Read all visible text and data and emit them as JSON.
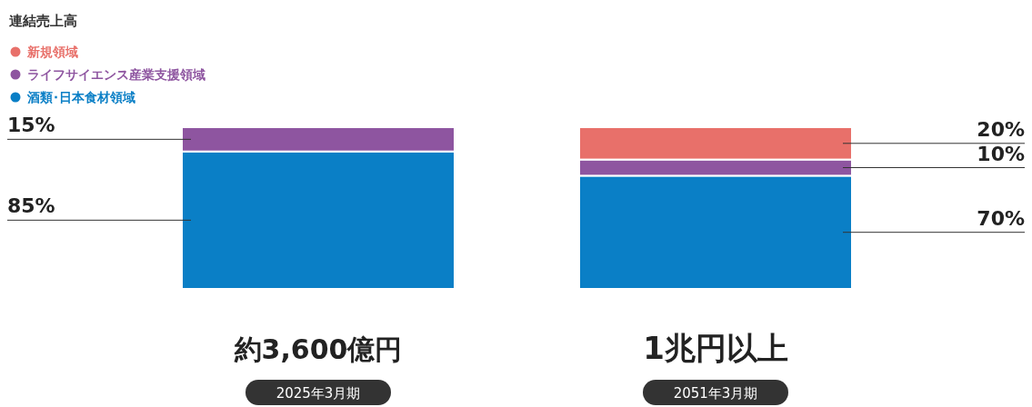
{
  "chart_data": {
    "type": "bar",
    "stacked": true,
    "title": "連結売上高",
    "legend": "top left",
    "categories": [
      "2025年3月期",
      "2051年3月期"
    ],
    "series": [
      {
        "name": "酒類･日本食材領域",
        "color": "#0a7fc6",
        "values": [
          85,
          70
        ],
        "value_labels": [
          "85%",
          "70%"
        ]
      },
      {
        "name": "ライフサイエンス産業支援領域",
        "color": "#8e55a0",
        "values": [
          15,
          10
        ],
        "value_labels": [
          "15%",
          "10%"
        ]
      },
      {
        "name": "新規領域",
        "color": "#e8706a",
        "values": [
          null,
          20
        ],
        "value_labels": [
          null,
          "20%"
        ]
      }
    ],
    "annotations": [
      "約3,600億円",
      "1兆円以上"
    ]
  }
}
